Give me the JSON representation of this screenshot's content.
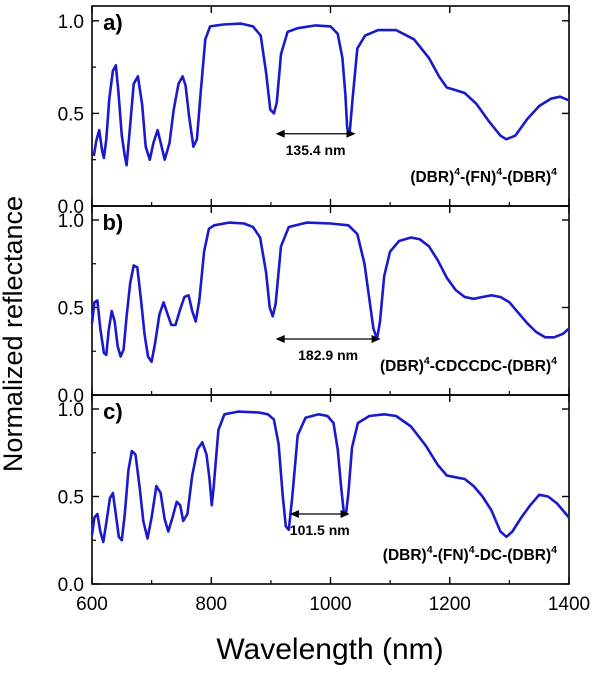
{
  "chart_data": {
    "type": "line",
    "ylabel": "Normalized reflectance",
    "xlabel": "Wavelength (nm)",
    "xlim": [
      600,
      1400
    ],
    "xticks": [
      600,
      800,
      1000,
      1200,
      1400
    ],
    "x_tick_labels": [
      "600",
      "800",
      "1000",
      "1200",
      "1400"
    ],
    "line_color": "#1a1acc",
    "panels": [
      {
        "id": "a",
        "panel_label": "a)",
        "ylim": [
          0,
          1.08
        ],
        "yticks": [
          0,
          0.5,
          1.0
        ],
        "y_tick_labels": [
          "0.0",
          "0.5",
          "1.0"
        ],
        "structure": {
          "base": "(DBR)",
          "sup": "4",
          "parts": [
            [
              "-(FN)",
              "4"
            ],
            [
              "-(DBR)",
              "4"
            ]
          ]
        },
        "arrow": {
          "x1": 908,
          "x2": 1042,
          "y": 0.39,
          "label": "135.4 nm"
        },
        "points": [
          [
            603,
            0.27
          ],
          [
            607,
            0.35
          ],
          [
            612,
            0.41
          ],
          [
            617,
            0.3
          ],
          [
            620,
            0.26
          ],
          [
            624,
            0.36
          ],
          [
            629,
            0.58
          ],
          [
            635,
            0.73
          ],
          [
            640,
            0.76
          ],
          [
            644,
            0.63
          ],
          [
            650,
            0.38
          ],
          [
            655,
            0.27
          ],
          [
            658,
            0.22
          ],
          [
            663,
            0.4
          ],
          [
            670,
            0.66
          ],
          [
            677,
            0.7
          ],
          [
            684,
            0.55
          ],
          [
            690,
            0.32
          ],
          [
            697,
            0.25
          ],
          [
            703,
            0.34
          ],
          [
            710,
            0.41
          ],
          [
            716,
            0.33
          ],
          [
            722,
            0.25
          ],
          [
            730,
            0.34
          ],
          [
            737,
            0.52
          ],
          [
            745,
            0.66
          ],
          [
            752,
            0.7
          ],
          [
            757,
            0.65
          ],
          [
            763,
            0.48
          ],
          [
            770,
            0.32
          ],
          [
            776,
            0.36
          ],
          [
            782,
            0.6
          ],
          [
            790,
            0.9
          ],
          [
            798,
            0.97
          ],
          [
            820,
            0.98
          ],
          [
            850,
            0.985
          ],
          [
            870,
            0.97
          ],
          [
            883,
            0.92
          ],
          [
            892,
            0.72
          ],
          [
            899,
            0.52
          ],
          [
            905,
            0.5
          ],
          [
            910,
            0.56
          ],
          [
            917,
            0.82
          ],
          [
            928,
            0.94
          ],
          [
            945,
            0.96
          ],
          [
            975,
            0.975
          ],
          [
            1000,
            0.97
          ],
          [
            1012,
            0.93
          ],
          [
            1020,
            0.8
          ],
          [
            1025,
            0.6
          ],
          [
            1028,
            0.42
          ],
          [
            1032,
            0.39
          ],
          [
            1037,
            0.58
          ],
          [
            1045,
            0.85
          ],
          [
            1058,
            0.92
          ],
          [
            1080,
            0.95
          ],
          [
            1110,
            0.95
          ],
          [
            1140,
            0.9
          ],
          [
            1165,
            0.8
          ],
          [
            1182,
            0.7
          ],
          [
            1195,
            0.64
          ],
          [
            1205,
            0.63
          ],
          [
            1225,
            0.61
          ],
          [
            1245,
            0.55
          ],
          [
            1265,
            0.46
          ],
          [
            1285,
            0.38
          ],
          [
            1295,
            0.36
          ],
          [
            1310,
            0.38
          ],
          [
            1330,
            0.47
          ],
          [
            1350,
            0.54
          ],
          [
            1370,
            0.58
          ],
          [
            1385,
            0.59
          ],
          [
            1400,
            0.57
          ]
        ]
      },
      {
        "id": "b",
        "panel_label": "b)",
        "ylim": [
          0,
          1.08
        ],
        "yticks": [
          0,
          0.5,
          1.0
        ],
        "y_tick_labels": [
          "0.0",
          "0.5",
          "1.0"
        ],
        "structure": {
          "base": "(DBR)",
          "sup": "4",
          "parts": [
            [
              "-CDCCDC-(DBR)",
              "4"
            ]
          ]
        },
        "arrow": {
          "x1": 908,
          "x2": 1084,
          "y": 0.32,
          "label": "182.9 nm"
        },
        "points": [
          [
            600,
            0.41
          ],
          [
            604,
            0.53
          ],
          [
            609,
            0.54
          ],
          [
            614,
            0.38
          ],
          [
            620,
            0.24
          ],
          [
            624,
            0.23
          ],
          [
            628,
            0.37
          ],
          [
            633,
            0.48
          ],
          [
            638,
            0.42
          ],
          [
            643,
            0.28
          ],
          [
            648,
            0.22
          ],
          [
            653,
            0.26
          ],
          [
            658,
            0.45
          ],
          [
            664,
            0.64
          ],
          [
            670,
            0.74
          ],
          [
            676,
            0.73
          ],
          [
            682,
            0.55
          ],
          [
            688,
            0.35
          ],
          [
            694,
            0.22
          ],
          [
            700,
            0.19
          ],
          [
            706,
            0.3
          ],
          [
            713,
            0.46
          ],
          [
            720,
            0.53
          ],
          [
            727,
            0.46
          ],
          [
            733,
            0.4
          ],
          [
            740,
            0.4
          ],
          [
            748,
            0.49
          ],
          [
            755,
            0.56
          ],
          [
            762,
            0.57
          ],
          [
            768,
            0.48
          ],
          [
            774,
            0.42
          ],
          [
            780,
            0.54
          ],
          [
            788,
            0.82
          ],
          [
            796,
            0.95
          ],
          [
            805,
            0.97
          ],
          [
            830,
            0.985
          ],
          [
            855,
            0.98
          ],
          [
            870,
            0.96
          ],
          [
            882,
            0.9
          ],
          [
            892,
            0.7
          ],
          [
            898,
            0.5
          ],
          [
            903,
            0.45
          ],
          [
            908,
            0.52
          ],
          [
            917,
            0.85
          ],
          [
            930,
            0.96
          ],
          [
            960,
            0.985
          ],
          [
            1000,
            0.98
          ],
          [
            1030,
            0.97
          ],
          [
            1045,
            0.92
          ],
          [
            1057,
            0.75
          ],
          [
            1065,
            0.55
          ],
          [
            1072,
            0.38
          ],
          [
            1078,
            0.32
          ],
          [
            1083,
            0.42
          ],
          [
            1090,
            0.68
          ],
          [
            1100,
            0.82
          ],
          [
            1115,
            0.88
          ],
          [
            1135,
            0.9
          ],
          [
            1150,
            0.89
          ],
          [
            1165,
            0.85
          ],
          [
            1180,
            0.77
          ],
          [
            1195,
            0.67
          ],
          [
            1210,
            0.6
          ],
          [
            1225,
            0.56
          ],
          [
            1240,
            0.55
          ],
          [
            1255,
            0.56
          ],
          [
            1270,
            0.57
          ],
          [
            1285,
            0.56
          ],
          [
            1300,
            0.53
          ],
          [
            1315,
            0.47
          ],
          [
            1330,
            0.41
          ],
          [
            1345,
            0.36
          ],
          [
            1360,
            0.33
          ],
          [
            1375,
            0.33
          ],
          [
            1390,
            0.35
          ],
          [
            1400,
            0.38
          ]
        ]
      },
      {
        "id": "c",
        "panel_label": "c)",
        "ylim": [
          0,
          1.08
        ],
        "yticks": [
          0,
          0.5,
          1.0
        ],
        "y_tick_labels": [
          "0.0",
          "0.5",
          "1.0"
        ],
        "structure": {
          "base": "(DBR)",
          "sup": "4",
          "parts": [
            [
              "-(FN)",
              "4"
            ],
            [
              "-DC-(DBR)",
              "4"
            ]
          ]
        },
        "arrow": {
          "x1": 932,
          "x2": 1032,
          "y": 0.4,
          "label": "101.5 nm"
        },
        "points": [
          [
            600,
            0.28
          ],
          [
            604,
            0.38
          ],
          [
            609,
            0.4
          ],
          [
            614,
            0.3
          ],
          [
            619,
            0.24
          ],
          [
            624,
            0.35
          ],
          [
            630,
            0.49
          ],
          [
            635,
            0.52
          ],
          [
            640,
            0.4
          ],
          [
            645,
            0.27
          ],
          [
            650,
            0.25
          ],
          [
            655,
            0.4
          ],
          [
            661,
            0.65
          ],
          [
            667,
            0.76
          ],
          [
            673,
            0.74
          ],
          [
            680,
            0.55
          ],
          [
            686,
            0.36
          ],
          [
            693,
            0.26
          ],
          [
            700,
            0.38
          ],
          [
            708,
            0.56
          ],
          [
            715,
            0.52
          ],
          [
            722,
            0.37
          ],
          [
            728,
            0.3
          ],
          [
            735,
            0.38
          ],
          [
            742,
            0.47
          ],
          [
            748,
            0.45
          ],
          [
            753,
            0.36
          ],
          [
            760,
            0.4
          ],
          [
            768,
            0.62
          ],
          [
            777,
            0.77
          ],
          [
            785,
            0.81
          ],
          [
            792,
            0.74
          ],
          [
            797,
            0.6
          ],
          [
            801,
            0.45
          ],
          [
            804,
            0.55
          ],
          [
            812,
            0.88
          ],
          [
            822,
            0.97
          ],
          [
            845,
            0.985
          ],
          [
            880,
            0.98
          ],
          [
            895,
            0.97
          ],
          [
            905,
            0.94
          ],
          [
            913,
            0.8
          ],
          [
            920,
            0.5
          ],
          [
            925,
            0.33
          ],
          [
            930,
            0.31
          ],
          [
            936,
            0.5
          ],
          [
            945,
            0.85
          ],
          [
            958,
            0.95
          ],
          [
            980,
            0.97
          ],
          [
            995,
            0.96
          ],
          [
            1005,
            0.92
          ],
          [
            1012,
            0.77
          ],
          [
            1018,
            0.55
          ],
          [
            1022,
            0.42
          ],
          [
            1026,
            0.4
          ],
          [
            1030,
            0.52
          ],
          [
            1036,
            0.78
          ],
          [
            1046,
            0.92
          ],
          [
            1065,
            0.96
          ],
          [
            1090,
            0.97
          ],
          [
            1110,
            0.96
          ],
          [
            1135,
            0.9
          ],
          [
            1160,
            0.79
          ],
          [
            1180,
            0.68
          ],
          [
            1195,
            0.62
          ],
          [
            1210,
            0.61
          ],
          [
            1225,
            0.6
          ],
          [
            1240,
            0.56
          ],
          [
            1255,
            0.5
          ],
          [
            1270,
            0.42
          ],
          [
            1285,
            0.3
          ],
          [
            1295,
            0.27
          ],
          [
            1305,
            0.3
          ],
          [
            1320,
            0.38
          ],
          [
            1335,
            0.45
          ],
          [
            1350,
            0.51
          ],
          [
            1365,
            0.5
          ],
          [
            1380,
            0.46
          ],
          [
            1395,
            0.4
          ],
          [
            1400,
            0.38
          ]
        ]
      }
    ]
  }
}
